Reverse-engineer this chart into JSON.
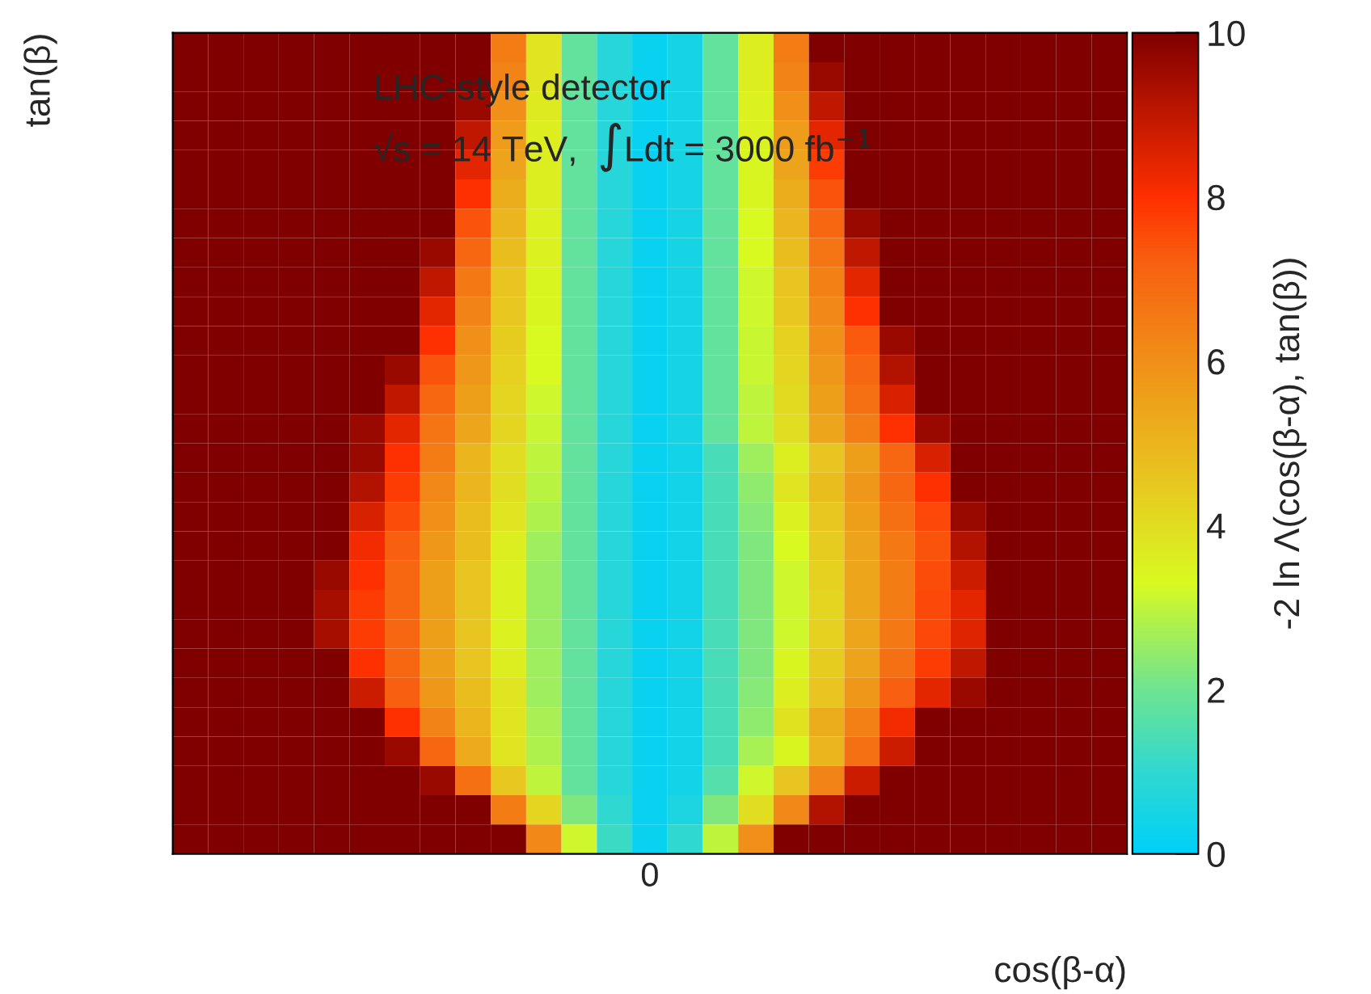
{
  "chart_data": {
    "type": "heatmap",
    "xlabel": "cos(β-α)",
    "ylabel": "tan(β)",
    "clabel": "-2 ln Λ(cos(β-α), tan(β))",
    "annotations": [
      "LHC-style detector",
      "√s = 14 TeV,  ∫Ldt = 3000 fb$^{−1}$"
    ],
    "categories": [
      null,
      null,
      null,
      null,
      null,
      null,
      null,
      null,
      null,
      null,
      null,
      null,
      null,
      "0",
      null,
      null,
      null,
      null,
      null,
      null,
      null,
      null,
      null,
      null,
      null,
      null,
      null
    ],
    "y_categories": [
      null,
      null,
      null,
      null,
      null,
      null,
      null,
      null,
      null,
      null,
      null,
      null,
      null,
      null,
      null,
      null,
      null,
      null,
      null,
      null,
      null,
      null,
      null,
      null,
      null,
      null,
      null,
      null
    ],
    "cells": [
      [
        10,
        10,
        10,
        10,
        10,
        10,
        10,
        10,
        10,
        6.5,
        3.8,
        1.8,
        0.8,
        0.2,
        0.5,
        1.8,
        3.6,
        6.5,
        10,
        10,
        10,
        10,
        10,
        10,
        10,
        10,
        10
      ],
      [
        10,
        10,
        10,
        10,
        10,
        10,
        10,
        10,
        10,
        6.3,
        3.8,
        1.8,
        0.8,
        0.2,
        0.5,
        1.8,
        3.6,
        6.3,
        9.6,
        10,
        10,
        10,
        10,
        10,
        10,
        10,
        10
      ],
      [
        10,
        10,
        10,
        10,
        10,
        10,
        10,
        10,
        9.6,
        6.0,
        3.7,
        1.8,
        0.8,
        0.2,
        0.5,
        1.8,
        3.5,
        6.0,
        9.0,
        10,
        10,
        10,
        10,
        10,
        10,
        10,
        10
      ],
      [
        10,
        10,
        10,
        10,
        10,
        10,
        10,
        10,
        9.0,
        5.7,
        3.6,
        1.8,
        0.8,
        0.2,
        0.5,
        1.8,
        3.5,
        5.7,
        8.4,
        10,
        10,
        10,
        10,
        10,
        10,
        10,
        10
      ],
      [
        10,
        10,
        10,
        10,
        10,
        10,
        10,
        10,
        8.4,
        5.5,
        3.6,
        1.8,
        0.8,
        0.2,
        0.5,
        1.8,
        3.4,
        5.5,
        7.8,
        10,
        10,
        10,
        10,
        10,
        10,
        10,
        10
      ],
      [
        10,
        10,
        10,
        10,
        10,
        10,
        10,
        10,
        8.0,
        5.2,
        3.6,
        1.8,
        0.8,
        0.2,
        0.5,
        1.8,
        3.4,
        5.2,
        7.4,
        10,
        10,
        10,
        10,
        10,
        10,
        10,
        10
      ],
      [
        10,
        10,
        10,
        10,
        10,
        10,
        10,
        10,
        7.4,
        5.0,
        3.5,
        1.8,
        0.8,
        0.2,
        0.5,
        1.8,
        3.3,
        5.0,
        7.0,
        9.6,
        10,
        10,
        10,
        10,
        10,
        10,
        10
      ],
      [
        10,
        10,
        10,
        10,
        10,
        10,
        10,
        9.6,
        7.0,
        4.8,
        3.5,
        1.8,
        0.8,
        0.2,
        0.5,
        1.8,
        3.3,
        4.8,
        6.7,
        9.0,
        10,
        10,
        10,
        10,
        10,
        10,
        10
      ],
      [
        10,
        10,
        10,
        10,
        10,
        10,
        10,
        9.0,
        6.6,
        4.6,
        3.4,
        1.8,
        0.8,
        0.2,
        0.5,
        1.8,
        3.2,
        4.6,
        6.4,
        8.4,
        10,
        10,
        10,
        10,
        10,
        10,
        10
      ],
      [
        10,
        10,
        10,
        10,
        10,
        10,
        10,
        8.4,
        6.3,
        4.5,
        3.4,
        1.8,
        0.8,
        0.2,
        0.5,
        1.8,
        3.2,
        4.5,
        6.2,
        8.0,
        10,
        10,
        10,
        10,
        10,
        10,
        10
      ],
      [
        10,
        10,
        10,
        10,
        10,
        10,
        10,
        8.0,
        6.0,
        4.4,
        3.3,
        1.8,
        0.8,
        0.2,
        0.5,
        1.8,
        3.1,
        4.3,
        6.0,
        7.3,
        9.6,
        10,
        10,
        10,
        10,
        10,
        10
      ],
      [
        10,
        10,
        10,
        10,
        10,
        10,
        9.6,
        7.4,
        5.8,
        4.3,
        3.3,
        1.8,
        0.8,
        0.2,
        0.5,
        1.8,
        3.1,
        4.2,
        5.8,
        7.0,
        9.2,
        10,
        10,
        10,
        10,
        10,
        10
      ],
      [
        10,
        10,
        10,
        10,
        10,
        10,
        9.0,
        7.0,
        5.6,
        4.2,
        3.2,
        1.8,
        0.8,
        0.2,
        0.5,
        1.8,
        3.0,
        4.1,
        5.6,
        6.8,
        8.6,
        10,
        10,
        10,
        10,
        10,
        10
      ],
      [
        10,
        10,
        10,
        10,
        10,
        9.6,
        8.4,
        6.7,
        5.4,
        4.2,
        3.1,
        1.8,
        0.8,
        0.2,
        0.5,
        1.8,
        3.0,
        4.0,
        5.4,
        6.5,
        8.0,
        9.6,
        10,
        10,
        10,
        10,
        10
      ],
      [
        10,
        10,
        10,
        10,
        10,
        9.6,
        8.0,
        6.5,
        5.0,
        4.0,
        3.0,
        1.8,
        0.8,
        0.2,
        0.4,
        1.4,
        2.6,
        3.6,
        4.6,
        5.6,
        7.0,
        8.6,
        10,
        10,
        10,
        10,
        10
      ],
      [
        10,
        10,
        10,
        10,
        10,
        9.2,
        7.8,
        6.2,
        5.0,
        4.0,
        2.9,
        1.8,
        0.8,
        0.2,
        0.4,
        1.4,
        2.4,
        3.8,
        4.8,
        5.8,
        7.0,
        8.0,
        10,
        10,
        10,
        10,
        10
      ],
      [
        10,
        10,
        10,
        10,
        10,
        8.6,
        7.5,
        6.0,
        4.8,
        3.8,
        2.8,
        1.8,
        0.8,
        0.2,
        0.4,
        1.4,
        2.3,
        3.5,
        4.5,
        5.6,
        6.8,
        7.6,
        9.6,
        10,
        10,
        10,
        10
      ],
      [
        10,
        10,
        10,
        10,
        10,
        8.2,
        7.2,
        5.8,
        4.8,
        3.6,
        2.6,
        1.8,
        0.8,
        0.2,
        0.4,
        1.4,
        2.2,
        3.3,
        4.4,
        5.5,
        6.6,
        7.4,
        9.2,
        10,
        10,
        10,
        10
      ],
      [
        10,
        10,
        10,
        10,
        9.6,
        8.0,
        7.0,
        5.6,
        4.6,
        3.5,
        2.5,
        1.8,
        0.8,
        0.2,
        0.4,
        1.4,
        2.2,
        3.2,
        4.3,
        5.4,
        6.5,
        7.5,
        8.8,
        10,
        10,
        10,
        10
      ],
      [
        10,
        10,
        10,
        10,
        9.4,
        7.8,
        7.0,
        5.6,
        4.6,
        3.5,
        2.5,
        1.8,
        0.8,
        0.2,
        0.4,
        1.4,
        2.2,
        3.2,
        4.2,
        5.4,
        6.5,
        7.6,
        8.4,
        10,
        10,
        10,
        10
      ],
      [
        10,
        10,
        10,
        10,
        9.4,
        7.8,
        7.0,
        5.6,
        4.6,
        3.5,
        2.5,
        1.8,
        0.8,
        0.2,
        0.4,
        1.4,
        2.2,
        3.2,
        4.3,
        5.4,
        6.6,
        7.6,
        8.5,
        10,
        10,
        10,
        10
      ],
      [
        10,
        10,
        10,
        10,
        10,
        8.0,
        7.0,
        5.6,
        4.6,
        3.6,
        2.6,
        1.8,
        0.8,
        0.2,
        0.4,
        1.4,
        2.2,
        3.4,
        4.4,
        5.5,
        6.8,
        7.8,
        9.0,
        10,
        10,
        10,
        10
      ],
      [
        10,
        10,
        10,
        10,
        10,
        8.8,
        7.2,
        5.8,
        4.8,
        3.8,
        2.6,
        1.8,
        0.8,
        0.2,
        0.4,
        1.4,
        2.3,
        3.6,
        4.6,
        5.8,
        7.2,
        8.4,
        9.6,
        10,
        10,
        10,
        10
      ],
      [
        10,
        10,
        10,
        10,
        10,
        10,
        8.0,
        6.3,
        5.0,
        3.8,
        2.7,
        1.8,
        0.8,
        0.2,
        0.4,
        1.4,
        2.4,
        3.9,
        5.2,
        6.4,
        8.2,
        10,
        10,
        10,
        10,
        10,
        10
      ],
      [
        10,
        10,
        10,
        10,
        10,
        10,
        9.6,
        7.0,
        5.3,
        3.8,
        2.8,
        1.8,
        0.8,
        0.2,
        0.4,
        1.4,
        2.7,
        3.4,
        5.0,
        6.8,
        8.8,
        10,
        10,
        10,
        10,
        10,
        10
      ],
      [
        10,
        10,
        10,
        10,
        10,
        10,
        10,
        9.6,
        6.8,
        4.5,
        3.0,
        1.8,
        0.8,
        0.2,
        0.4,
        1.6,
        3.2,
        4.6,
        6.3,
        8.8,
        10,
        10,
        10,
        10,
        10,
        10,
        10
      ],
      [
        10,
        10,
        10,
        10,
        10,
        10,
        10,
        10,
        10,
        6.5,
        4.2,
        2.2,
        1.0,
        0.2,
        0.6,
        2.2,
        4.0,
        6.2,
        9.2,
        10,
        10,
        10,
        10,
        10,
        10,
        10,
        10
      ],
      [
        10,
        10,
        10,
        10,
        10,
        10,
        10,
        10,
        10,
        10,
        6.2,
        3.2,
        1.2,
        0.2,
        1.0,
        3.0,
        6.0,
        10,
        10,
        10,
        10,
        10,
        10,
        10,
        10,
        10,
        10
      ]
    ],
    "clim": [
      0,
      10
    ],
    "cticks": [
      0,
      2,
      4,
      6,
      8,
      10
    ],
    "tick_labels": "x"
  }
}
